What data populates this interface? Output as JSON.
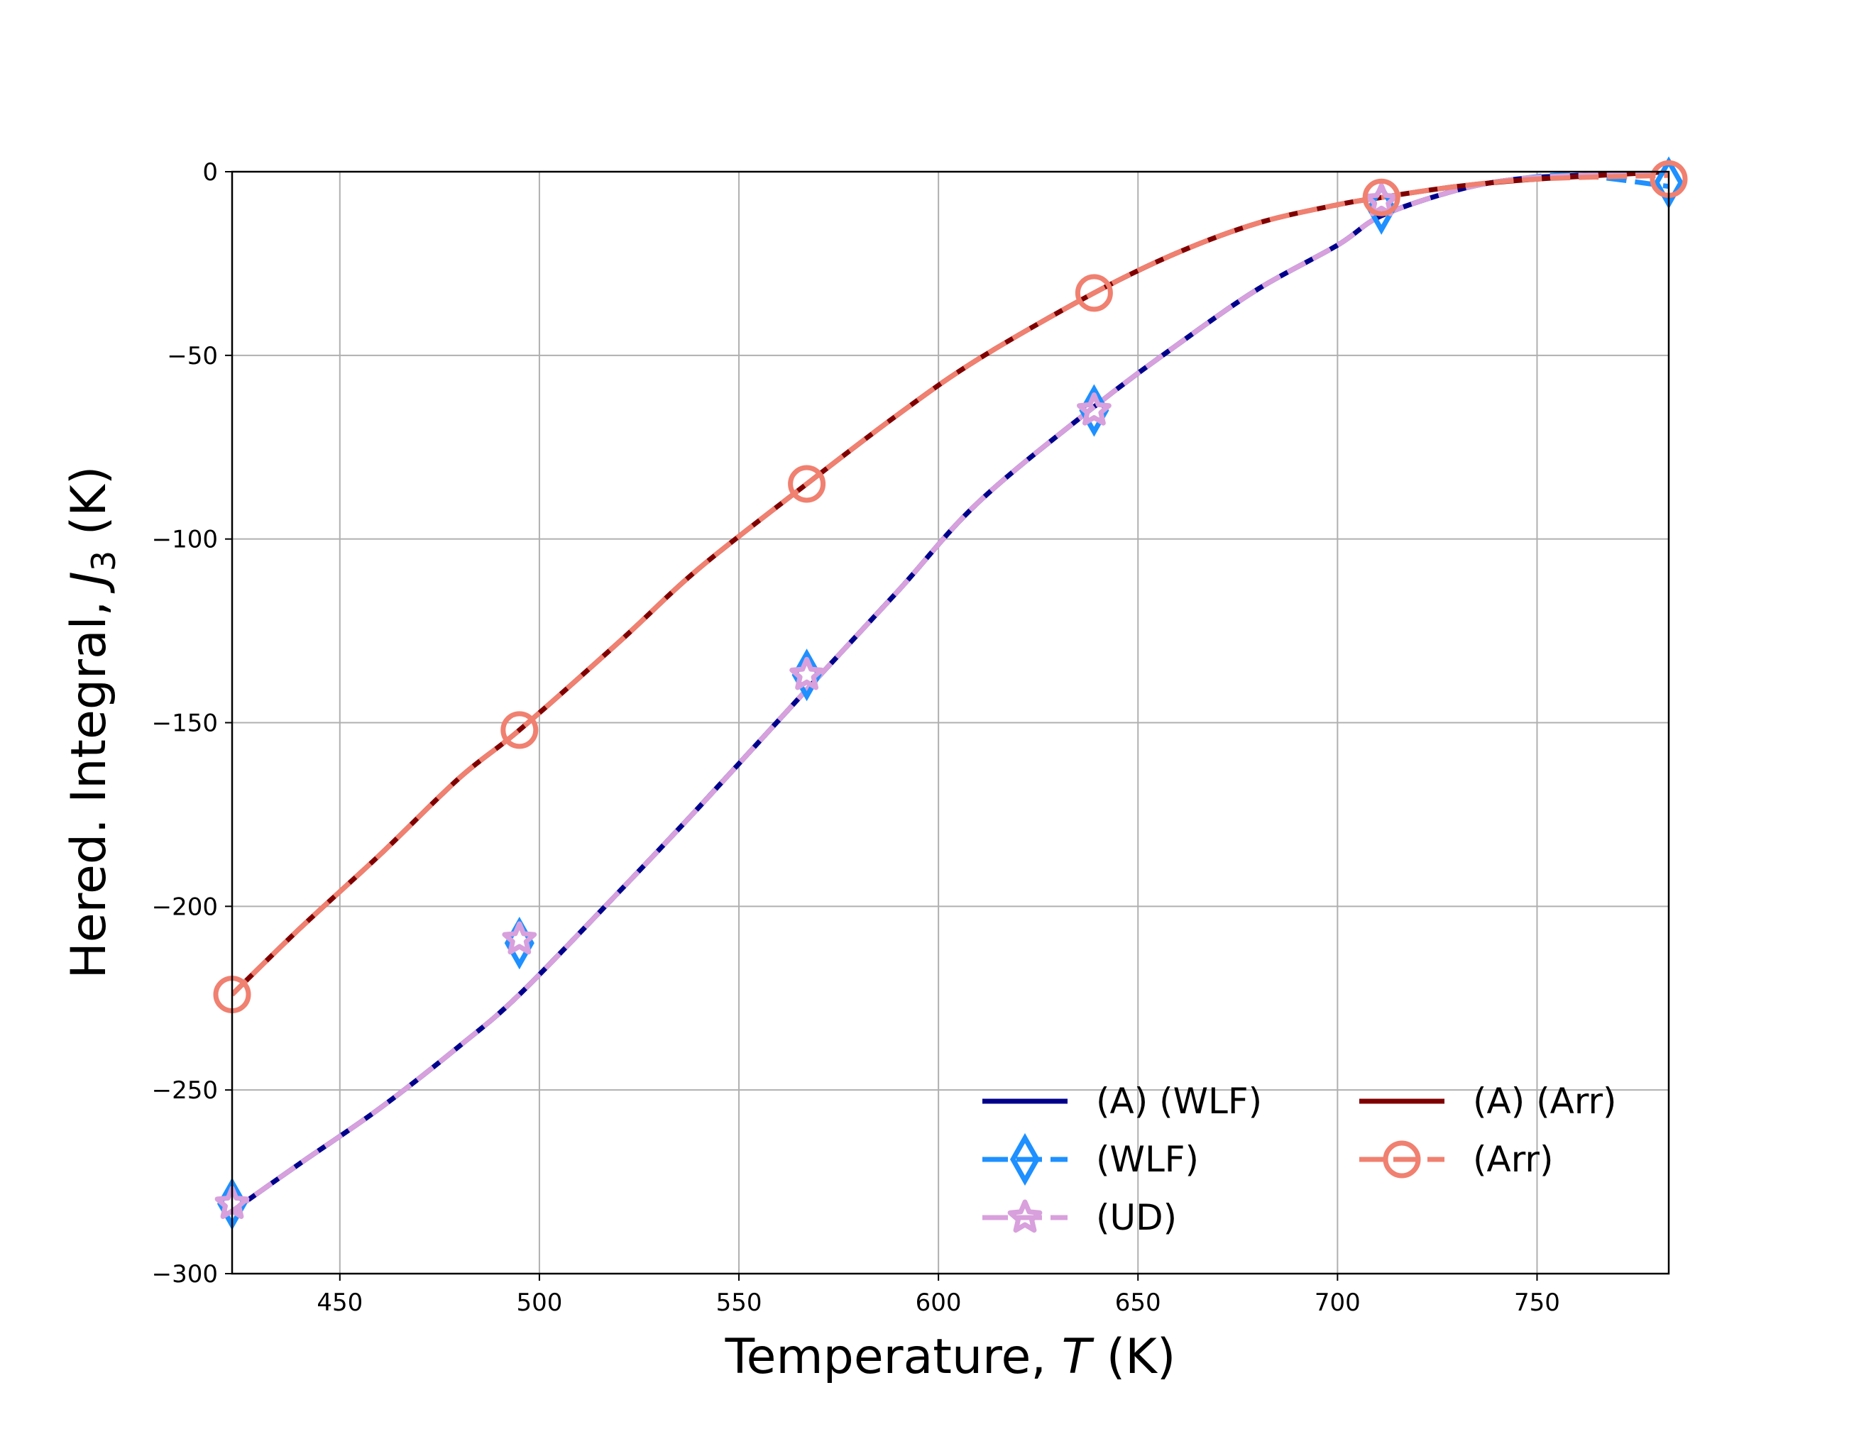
{
  "chart_data": {
    "type": "line",
    "xlabel": "Temperature, T (K)",
    "xlabel_parts": [
      "Temperature, ",
      "T",
      " (K)"
    ],
    "ylabel": "Hered. Integral, J3 (K)",
    "ylabel_parts": [
      "Hered. Integral, ",
      "J",
      "3",
      " (K)"
    ],
    "xlim": [
      423,
      783
    ],
    "ylim": [
      -300,
      0
    ],
    "xticks": [
      450,
      500,
      550,
      600,
      650,
      700,
      750
    ],
    "xtick_labels": [
      "450",
      "500",
      "550",
      "600",
      "650",
      "700",
      "750"
    ],
    "yticks": [
      0,
      -50,
      -100,
      -150,
      -200,
      -250,
      -300
    ],
    "ytick_labels": [
      "0",
      "−50",
      "−100",
      "−150",
      "−200",
      "−250",
      "−300"
    ],
    "grid": true,
    "legend": {
      "placement": "bottom-right",
      "columns": 2,
      "entries": [
        "(A) (WLF)",
        "(WLF)",
        "(UD)",
        "(A) (Arr)",
        "(Arr)"
      ]
    },
    "series": [
      {
        "name": "(A) (WLF)",
        "color": "#00008b",
        "style": "solid",
        "marker": "none",
        "x": [
          423,
          440,
          460,
          480,
          495,
          520,
          540,
          567,
          590,
          610,
          639,
          660,
          680,
          700,
          711,
          730,
          745,
          760,
          783
        ],
        "y": [
          -283,
          -270,
          -255,
          -238,
          -224,
          -196,
          -173,
          -141,
          -114,
          -90,
          -64,
          -47,
          -32,
          -20,
          -12,
          -5,
          -2,
          -1,
          0
        ]
      },
      {
        "name": "(WLF)",
        "color": "#1e90ff",
        "style": "dashed",
        "marker": "thin-diamond",
        "marker_x": [
          423,
          495,
          567,
          639,
          711,
          783
        ],
        "marker_y": [
          -281,
          -210,
          -137,
          -65,
          -10,
          -3
        ],
        "x": [
          423,
          440,
          460,
          480,
          495,
          520,
          540,
          567,
          590,
          610,
          639,
          660,
          680,
          700,
          711,
          730,
          745,
          760,
          783
        ],
        "y": [
          -283,
          -270,
          -255,
          -238,
          -224,
          -196,
          -173,
          -141,
          -114,
          -90,
          -64,
          -47,
          -32,
          -20,
          -12,
          -5,
          -2,
          -1,
          -4
        ]
      },
      {
        "name": "(UD)",
        "color": "#d8a0dc",
        "style": "dashed",
        "marker": "star",
        "marker_x": [
          423,
          495,
          567,
          639,
          711
        ],
        "marker_y": [
          -281,
          -209,
          -137,
          -65,
          -8
        ],
        "x": [
          423,
          440,
          460,
          480,
          495,
          520,
          540,
          567,
          590,
          610,
          639,
          660,
          680,
          700,
          711,
          730,
          745,
          760,
          783
        ],
        "y": [
          -283,
          -270,
          -255,
          -238,
          -224,
          -196,
          -173,
          -141,
          -114,
          -90,
          -64,
          -47,
          -32,
          -20,
          -12,
          -5,
          -2,
          -1,
          0
        ]
      },
      {
        "name": "(A) (Arr)",
        "color": "#800000",
        "style": "solid",
        "marker": "none",
        "x": [
          423,
          440,
          460,
          480,
          495,
          520,
          540,
          567,
          590,
          610,
          639,
          660,
          680,
          700,
          711,
          730,
          750,
          783
        ],
        "y": [
          -224,
          -206,
          -186,
          -165,
          -152,
          -128,
          -108,
          -85,
          -66,
          -51,
          -33,
          -22,
          -14,
          -9,
          -7,
          -4,
          -2,
          0
        ]
      },
      {
        "name": "(Arr)",
        "color": "#f08070",
        "style": "dashed",
        "marker": "circle",
        "marker_x": [
          423,
          495,
          567,
          639,
          711,
          783
        ],
        "marker_y": [
          -224,
          -152,
          -85,
          -33,
          -7,
          -2
        ],
        "x": [
          423,
          440,
          460,
          480,
          495,
          520,
          540,
          567,
          590,
          610,
          639,
          660,
          680,
          700,
          711,
          730,
          750,
          783
        ],
        "y": [
          -224,
          -206,
          -186,
          -165,
          -152,
          -128,
          -108,
          -85,
          -66,
          -51,
          -33,
          -22,
          -14,
          -9,
          -7,
          -4,
          -2,
          -1
        ]
      }
    ]
  }
}
